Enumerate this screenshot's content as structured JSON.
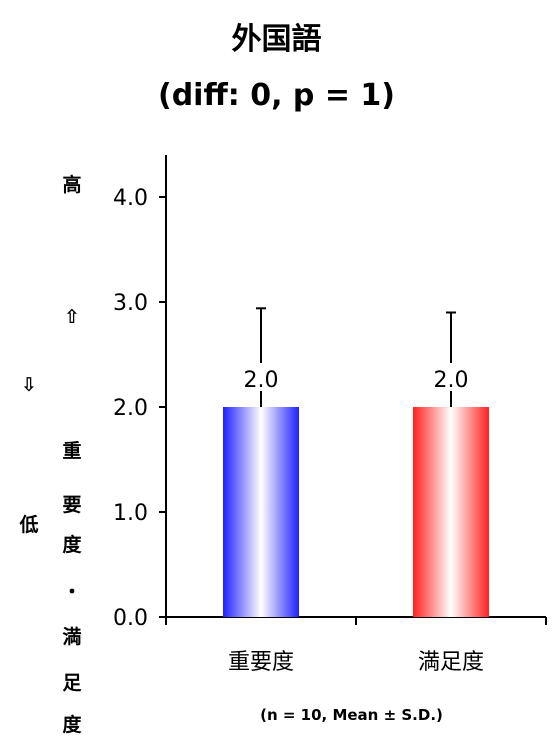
{
  "chart_data": {
    "type": "bar",
    "title": "外国語",
    "subtitle": "(diff: 0, p = 1)",
    "categories": [
      "重要度",
      "満足度"
    ],
    "values": [
      2.0,
      2.0
    ],
    "sd": [
      0.94,
      0.9
    ],
    "data_labels": [
      "2.0",
      "2.0"
    ],
    "ylim": [
      0,
      4.4
    ],
    "yticks": [
      "0.0",
      "1.0",
      "2.0",
      "3.0",
      "4.0"
    ],
    "ylabel": {
      "high": "高",
      "up_arrow": "⇧",
      "down_arrow": "⇩",
      "low": "低",
      "vertical_text": [
        "重",
        "要",
        "度",
        "・",
        "満",
        "足",
        "度"
      ]
    },
    "bar_colors": [
      "#2020ff",
      "#ff2020"
    ],
    "note": "(n = 10, Mean ± S.D.)",
    "grid": false,
    "legend": "none"
  }
}
